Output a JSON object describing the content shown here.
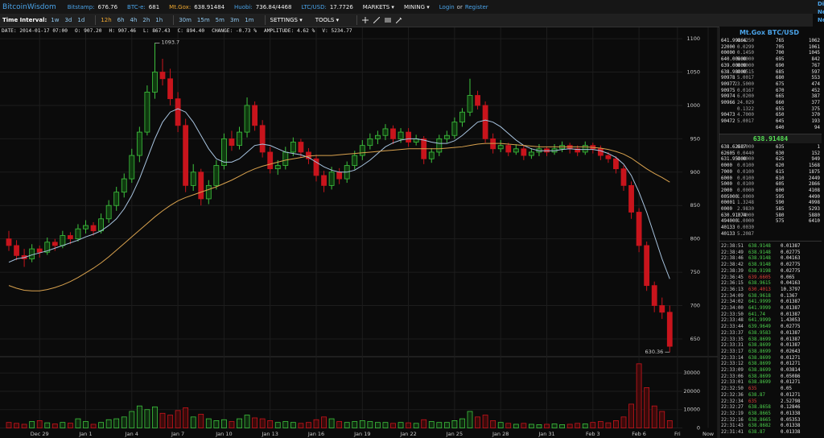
{
  "header": {
    "logo": "BitcoinWisdom",
    "tickers": [
      {
        "label": "Bitstamp:",
        "value": "676.76",
        "color": "#4aa3e8"
      },
      {
        "label": "BTC-e:",
        "value": "681",
        "color": "#4aa3e8"
      },
      {
        "label": "Mt.Gox:",
        "value": "638.91484",
        "color": "#f0a830"
      },
      {
        "label": "Huobi:",
        "value": "736.84/4468",
        "color": "#4aa3e8"
      },
      {
        "label": "LTC/USD:",
        "value": "17.7726",
        "color": "#4aa3e8"
      }
    ],
    "menus": [
      "MARKETS ▾",
      "MINING ▾"
    ],
    "login": "Login",
    "or": "or",
    "register": "Register",
    "edge": [
      "Di",
      "Ne",
      "Ne"
    ]
  },
  "toolbar": {
    "label": "Time Interval:",
    "intervals": [
      "1w",
      "3d",
      "1d",
      "12h",
      "6h",
      "4h",
      "2h",
      "1h",
      "30m",
      "15m",
      "5m",
      "3m",
      "1m"
    ],
    "active": "12h",
    "settings": "SETTINGS ▾",
    "tools": "TOOLS ▾"
  },
  "info": [
    "DATE: 2014-01-17 07:00",
    "O: 907.20",
    "H: 907.46",
    "L: 867.43",
    "C: 894.40",
    "CHANGE: -0.73 %",
    "AMPLITUDE: 4.62 %",
    "V: 5234.77"
  ],
  "chart_data": {
    "type": "candlestick",
    "ylim": [
      627,
      1117
    ],
    "yticks": [
      650,
      700,
      750,
      800,
      850,
      900,
      950,
      1000,
      1050,
      1100
    ],
    "y2lim": [
      0,
      38000
    ],
    "y2ticks": [
      0,
      10000,
      20000,
      30000
    ],
    "xticks": [
      {
        "value": 4,
        "label": "Dec 29"
      },
      {
        "value": 10,
        "label": "Jan 1"
      },
      {
        "value": 16,
        "label": "Jan 4"
      },
      {
        "value": 22,
        "label": "Jan 7"
      },
      {
        "value": 28,
        "label": "Jan 10"
      },
      {
        "value": 34,
        "label": "Jan 13"
      },
      {
        "value": 40,
        "label": "Jan 16"
      },
      {
        "value": 46,
        "label": "Jan 19"
      },
      {
        "value": 52,
        "label": "Jan 22"
      },
      {
        "value": 58,
        "label": "Jan 25"
      },
      {
        "value": 64,
        "label": "Jan 28"
      },
      {
        "value": 70,
        "label": "Jan 31"
      },
      {
        "value": 76,
        "label": "Feb 3"
      },
      {
        "value": 82,
        "label": "Feb 6"
      },
      {
        "value": 87,
        "label": "Fri"
      },
      {
        "value": 91,
        "label": "Now"
      }
    ],
    "grid": true,
    "up_color": "#3ec43e",
    "down_color": "#c8141c",
    "annotations": [
      "1093.7",
      "630.36"
    ],
    "candles": [
      [
        800,
        812,
        782,
        790
      ],
      [
        790,
        798,
        768,
        775
      ],
      [
        775,
        785,
        758,
        770
      ],
      [
        770,
        792,
        765,
        785
      ],
      [
        785,
        790,
        772,
        780
      ],
      [
        780,
        802,
        776,
        795
      ],
      [
        795,
        800,
        782,
        790
      ],
      [
        790,
        812,
        786,
        805
      ],
      [
        805,
        810,
        792,
        800
      ],
      [
        800,
        822,
        796,
        815
      ],
      [
        815,
        828,
        808,
        820
      ],
      [
        820,
        825,
        805,
        812
      ],
      [
        812,
        838,
        808,
        830
      ],
      [
        830,
        858,
        824,
        850
      ],
      [
        850,
        878,
        842,
        870
      ],
      [
        870,
        898,
        862,
        890
      ],
      [
        890,
        935,
        884,
        925
      ],
      [
        925,
        968,
        915,
        960
      ],
      [
        960,
        1030,
        955,
        1020
      ],
      [
        1020,
        1093.7,
        1010,
        1050
      ],
      [
        1050,
        1070,
        1030,
        1040
      ],
      [
        1040,
        1055,
        1000,
        1010
      ],
      [
        1010,
        1020,
        960,
        970
      ],
      [
        970,
        980,
        870,
        880
      ],
      [
        880,
        912,
        872,
        900
      ],
      [
        900,
        905,
        850,
        860
      ],
      [
        860,
        888,
        852,
        880
      ],
      [
        880,
        918,
        874,
        910
      ],
      [
        910,
        958,
        904,
        950
      ],
      [
        950,
        962,
        932,
        940
      ],
      [
        940,
        968,
        934,
        960
      ],
      [
        960,
        1012,
        952,
        1000
      ],
      [
        1000,
        1006,
        962,
        970
      ],
      [
        970,
        978,
        922,
        930
      ],
      [
        930,
        938,
        898,
        905
      ],
      [
        905,
        918,
        896,
        910
      ],
      [
        910,
        938,
        904,
        930
      ],
      [
        930,
        952,
        924,
        945
      ],
      [
        945,
        950,
        922,
        930
      ],
      [
        930,
        936,
        912,
        920
      ],
      [
        920,
        926,
        886,
        895
      ],
      [
        895,
        902,
        870,
        880
      ],
      [
        880,
        908,
        874,
        900
      ],
      [
        900,
        906,
        882,
        890
      ],
      [
        890,
        916,
        884,
        910
      ],
      [
        910,
        932,
        904,
        925
      ],
      [
        925,
        948,
        918,
        940
      ],
      [
        940,
        958,
        934,
        950
      ],
      [
        950,
        962,
        942,
        955
      ],
      [
        955,
        972,
        948,
        965
      ],
      [
        965,
        970,
        942,
        950
      ],
      [
        950,
        966,
        944,
        960
      ],
      [
        960,
        966,
        938,
        945
      ],
      [
        945,
        956,
        940,
        950
      ],
      [
        950,
        954,
        912,
        920
      ],
      [
        920,
        936,
        914,
        930
      ],
      [
        930,
        956,
        924,
        950
      ],
      [
        950,
        962,
        944,
        955
      ],
      [
        955,
        982,
        950,
        975
      ],
      [
        975,
        996,
        968,
        990
      ],
      [
        990,
        1040,
        984,
        1015
      ],
      [
        1015,
        1022,
        994,
        1000
      ],
      [
        1000,
        1006,
        944,
        950
      ],
      [
        950,
        958,
        928,
        935
      ],
      [
        935,
        948,
        930,
        940
      ],
      [
        940,
        944,
        924,
        930
      ],
      [
        930,
        942,
        926,
        935
      ],
      [
        935,
        940,
        918,
        925
      ],
      [
        925,
        936,
        920,
        930
      ],
      [
        930,
        942,
        924,
        935
      ],
      [
        935,
        938,
        924,
        930
      ],
      [
        930,
        942,
        926,
        935
      ],
      [
        935,
        946,
        930,
        940
      ],
      [
        940,
        944,
        928,
        935
      ],
      [
        935,
        940,
        924,
        930
      ],
      [
        930,
        946,
        926,
        940
      ],
      [
        940,
        944,
        928,
        935
      ],
      [
        935,
        940,
        918,
        925
      ],
      [
        925,
        930,
        914,
        920
      ],
      [
        920,
        924,
        898,
        905
      ],
      [
        905,
        910,
        872,
        880
      ],
      [
        880,
        886,
        830,
        840
      ],
      [
        840,
        846,
        780,
        790
      ],
      [
        790,
        796,
        722,
        730
      ],
      [
        730,
        736,
        690,
        700
      ],
      [
        700,
        712,
        680,
        690
      ],
      [
        690,
        700,
        630.36,
        638.91
      ]
    ],
    "volumes": [
      3000,
      2500,
      2000,
      3500,
      4000,
      2800,
      2200,
      3000,
      2600,
      5000,
      3500,
      2000,
      3000,
      4500,
      5000,
      6000,
      9000,
      12000,
      10000,
      11500,
      8000,
      7000,
      9500,
      11000,
      6000,
      7500,
      5000,
      4000,
      4500,
      3500,
      5000,
      7000,
      5500,
      5000,
      4000,
      3000,
      3500,
      3000,
      2500,
      3000,
      4500,
      6000,
      5000,
      3500,
      3000,
      3500,
      4000,
      3500,
      3000,
      3000,
      2500,
      3000,
      2800,
      2500,
      4500,
      3500,
      3000,
      3000,
      4000,
      5000,
      9000,
      6000,
      7000,
      4000,
      3000,
      2500,
      2000,
      2500,
      2000,
      1800,
      2000,
      2200,
      1800,
      2000,
      2500,
      2200,
      3000,
      3500,
      2800,
      4000,
      6000,
      13000,
      35000,
      22000,
      12000,
      9000,
      4000
    ],
    "ma_fast": {
      "color": "#a8c4e0",
      "values": [
        765,
        770,
        772,
        776,
        779,
        782,
        786,
        790,
        794,
        798,
        803,
        807,
        812,
        820,
        830,
        845,
        865,
        890,
        920,
        950,
        975,
        990,
        995,
        990,
        975,
        955,
        935,
        920,
        915,
        915,
        920,
        930,
        940,
        942,
        940,
        935,
        930,
        928,
        926,
        922,
        915,
        908,
        903,
        900,
        900,
        903,
        910,
        918,
        928,
        938,
        944,
        948,
        950,
        950,
        948,
        945,
        943,
        943,
        947,
        955,
        965,
        975,
        978,
        975,
        968,
        958,
        948,
        940,
        935,
        932,
        932,
        932,
        934,
        935,
        934,
        934,
        934,
        932,
        928,
        922,
        912,
        895,
        870,
        840,
        805,
        770,
        740
      ]
    },
    "ma_slow": {
      "color": "#d9a24e",
      "values": [
        730,
        726,
        723,
        722,
        722,
        724,
        727,
        731,
        736,
        742,
        749,
        756,
        764,
        773,
        783,
        793,
        803,
        813,
        823,
        833,
        842,
        850,
        857,
        862,
        866,
        870,
        874,
        878,
        883,
        888,
        894,
        900,
        905,
        909,
        912,
        915,
        918,
        920,
        922,
        924,
        925,
        925,
        925,
        926,
        927,
        928,
        929,
        930,
        931,
        932,
        933,
        934,
        935,
        935,
        935,
        935,
        935,
        936,
        937,
        938,
        940,
        942,
        943,
        943,
        943,
        942,
        941,
        940,
        939,
        938,
        938,
        938,
        938,
        938,
        938,
        938,
        937,
        936,
        934,
        931,
        927,
        921,
        913,
        905,
        898,
        892,
        885
      ]
    }
  },
  "orderbook": {
    "title": "Mt.Gox BTC/USD",
    "asks": [
      {
        "price": "641.99866",
        "amount": "0.4250",
        "level": "765",
        "total": "1062"
      },
      {
        "price": "22000",
        "amount": "0.0299",
        "level": "705",
        "total": "1061"
      },
      {
        "price": "00000",
        "amount": "0.1450",
        "level": "700",
        "total": "1045"
      },
      {
        "price": "640.00000",
        "amount": "5.0000",
        "level": "695",
        "total": "842"
      },
      {
        "price": "639.00000",
        "amount": "8.9000",
        "level": "690",
        "total": "767"
      },
      {
        "price": "638.98000",
        "amount": "0.0515",
        "level": "685",
        "total": "597"
      },
      {
        "price": "90978",
        "amount": "5.0017",
        "level": "680",
        "total": "553"
      },
      {
        "price": "90977",
        "amount": "23.5000",
        "level": "675",
        "total": "474"
      },
      {
        "price": "90975",
        "amount": "0.0167",
        "level": "670",
        "total": "452"
      },
      {
        "price": "90974",
        "amount": "6.0200",
        "level": "665",
        "total": "387"
      },
      {
        "price": "90966",
        "amount": "24.029",
        "level": "660",
        "total": "377"
      },
      {
        "amount": "0.1322",
        "level": "655",
        "total": "375"
      },
      {
        "price": "90473",
        "amount": "4.7000",
        "level": "650",
        "total": "370"
      },
      {
        "price": "90472",
        "amount": "5.0017",
        "level": "645",
        "total": "193"
      },
      {
        "level": "640",
        "total": "94"
      }
    ],
    "last": "638.91484",
    "bids": [
      {
        "price": "638.62687",
        "amount": "0.5000",
        "level": "635",
        "total": "1"
      },
      {
        "price": "62605",
        "amount": "0.0440",
        "level": "630",
        "total": "152"
      },
      {
        "price": "631.95000",
        "amount": "0.0000",
        "level": "625",
        "total": "949"
      },
      {
        "price": "0000",
        "amount": "0.0100",
        "level": "620",
        "total": "1568"
      },
      {
        "price": "7000",
        "amount": "0.0100",
        "level": "615",
        "total": "1875"
      },
      {
        "price": "6000",
        "amount": "0.0100",
        "level": "610",
        "total": "2449"
      },
      {
        "price": "5000",
        "amount": "0.0100",
        "level": "605",
        "total": "2866"
      },
      {
        "price": "2000",
        "amount": "0.0000",
        "level": "600",
        "total": "4108"
      },
      {
        "price": "005000",
        "amount": "1.0000",
        "level": "595",
        "total": "4490"
      },
      {
        "price": "00001",
        "amount": "1.3248",
        "level": "590",
        "total": "4998"
      },
      {
        "price": "0000",
        "amount": "2.9830",
        "level": "585",
        "total": "5293"
      },
      {
        "price": "630.91074",
        "amount": "1.0000",
        "level": "580",
        "total": "5880"
      },
      {
        "price": "494000",
        "amount": "1.0000",
        "level": "575",
        "total": "6410"
      },
      {
        "price": "40133",
        "amount": "0.0030"
      },
      {
        "price": "40133",
        "amount": "5.2087"
      }
    ]
  },
  "trades": [
    {
      "time": "22:38:51",
      "price": "638.9148",
      "amount": "0.01387",
      "color": "#4ed24e"
    },
    {
      "time": "22:38:49",
      "price": "638.9148",
      "amount": "0.02775",
      "color": "#4ed24e"
    },
    {
      "time": "22:38:46",
      "price": "638.9148",
      "amount": "0.04163",
      "color": "#4ed24e"
    },
    {
      "time": "22:38:42",
      "price": "638.9148",
      "amount": "0.02775",
      "color": "#4ed24e"
    },
    {
      "time": "22:38:39",
      "price": "638.9198",
      "amount": "0.02775",
      "color": "#4ed24e"
    },
    {
      "time": "22:36:45",
      "price": "639.6605",
      "amount": "0.065",
      "color": "#e0403a"
    },
    {
      "time": "22:36:15",
      "price": "638.9615",
      "amount": "0.04163",
      "color": "#4ed24e"
    },
    {
      "time": "22:36:13",
      "price": "630.4013",
      "amount": "10.3797",
      "color": "#e0403a"
    },
    {
      "time": "22:34:09",
      "price": "638.9618",
      "amount": "0.1367",
      "color": "#4ed24e"
    },
    {
      "time": "22:34:02",
      "price": "641.9999",
      "amount": "0.01387",
      "color": "#4ed24e"
    },
    {
      "time": "22:34:00",
      "price": "641.9999",
      "amount": "0.01387",
      "color": "#4ed24e"
    },
    {
      "time": "22:33:50",
      "price": "641.74",
      "amount": "0.01387",
      "color": "#4ed24e"
    },
    {
      "time": "22:33:48",
      "price": "641.9999",
      "amount": "1.43053",
      "color": "#4ed24e"
    },
    {
      "time": "22:33:44",
      "price": "639.9649",
      "amount": "0.02775",
      "color": "#4ed24e"
    },
    {
      "time": "22:33:37",
      "price": "638.9583",
      "amount": "0.01387",
      "color": "#4ed24e"
    },
    {
      "time": "22:33:35",
      "price": "638.8699",
      "amount": "0.01387",
      "color": "#4ed24e"
    },
    {
      "time": "22:33:31",
      "price": "638.8699",
      "amount": "0.01387",
      "color": "#4ed24e"
    },
    {
      "time": "22:33:17",
      "price": "638.8699",
      "amount": "0.02643",
      "color": "#4ed24e"
    },
    {
      "time": "22:33:14",
      "price": "638.8699",
      "amount": "0.01271",
      "color": "#4ed24e"
    },
    {
      "time": "22:33:12",
      "price": "638.8699",
      "amount": "0.01271",
      "color": "#4ed24e"
    },
    {
      "time": "22:33:09",
      "price": "638.8699",
      "amount": "0.03814",
      "color": "#4ed24e"
    },
    {
      "time": "22:33:06",
      "price": "638.8699",
      "amount": "0.05086",
      "color": "#4ed24e"
    },
    {
      "time": "22:33:01",
      "price": "638.8699",
      "amount": "0.01271",
      "color": "#4ed24e"
    },
    {
      "time": "22:32:50",
      "price": "635",
      "amount": "0.05",
      "color": "#e0403a"
    },
    {
      "time": "22:32:36",
      "price": "638.87",
      "amount": "0.01271",
      "color": "#4ed24e"
    },
    {
      "time": "22:32:34",
      "price": "635",
      "amount": "2.52798",
      "color": "#e0403a"
    },
    {
      "time": "22:32:27",
      "price": "638.8658",
      "amount": "0.12846",
      "color": "#4ed24e"
    },
    {
      "time": "22:32:19",
      "price": "638.8665",
      "amount": "0.01338",
      "color": "#4ed24e"
    },
    {
      "time": "22:32:16",
      "price": "638.8665",
      "amount": "0.05353",
      "color": "#4ed24e"
    },
    {
      "time": "22:31:43",
      "price": "638.8682",
      "amount": "0.01338",
      "color": "#4ed24e"
    },
    {
      "time": "22:31:41",
      "price": "638.87",
      "amount": "0.01338",
      "color": "#4ed24e"
    }
  ]
}
